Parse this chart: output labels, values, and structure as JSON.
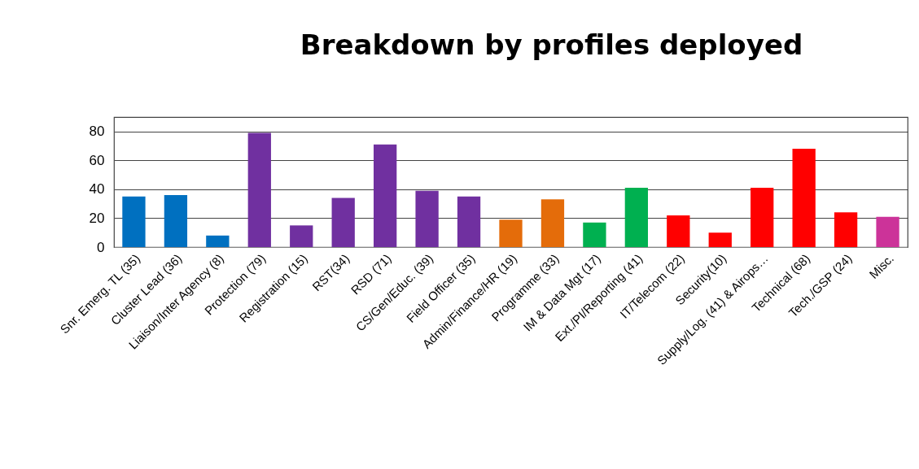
{
  "chart_data": {
    "type": "bar",
    "title": "Breakdown by profiles deployed",
    "categories": [
      "Snr. Emerg. TL (35)",
      "Cluster Lead (36)",
      "Liaison/Inter Agency (8)",
      "Protection (79)",
      "Registration (15)",
      "RST(34)",
      "RSD (71)",
      "CS/Gen/Educ. (39)",
      "Field Officer (35)",
      "Admin/Finance/HR (19)",
      "Programme (33)",
      "IM & Data Mgt (17)",
      "Ext./PI/Reporting (41)",
      "IT/Telecom (22)",
      "Security(10)",
      "Supply/Log. (41) & Airops…",
      "Technical (68)",
      "Tech./GSP (24)",
      "Misc."
    ],
    "values": [
      35,
      36,
      8,
      79,
      15,
      34,
      71,
      39,
      35,
      19,
      33,
      17,
      41,
      22,
      10,
      41,
      68,
      24,
      21
    ],
    "colors": [
      "#0070c0",
      "#0070c0",
      "#0070c0",
      "#7030a0",
      "#7030a0",
      "#7030a0",
      "#7030a0",
      "#7030a0",
      "#7030a0",
      "#e46c0a",
      "#e46c0a",
      "#00b050",
      "#00b050",
      "#ff0000",
      "#ff0000",
      "#ff0000",
      "#ff0000",
      "#ff0000",
      "#cc3399"
    ],
    "ylim": [
      0,
      90
    ],
    "yticks": [
      0,
      20,
      40,
      60,
      80
    ],
    "grid": "y"
  }
}
